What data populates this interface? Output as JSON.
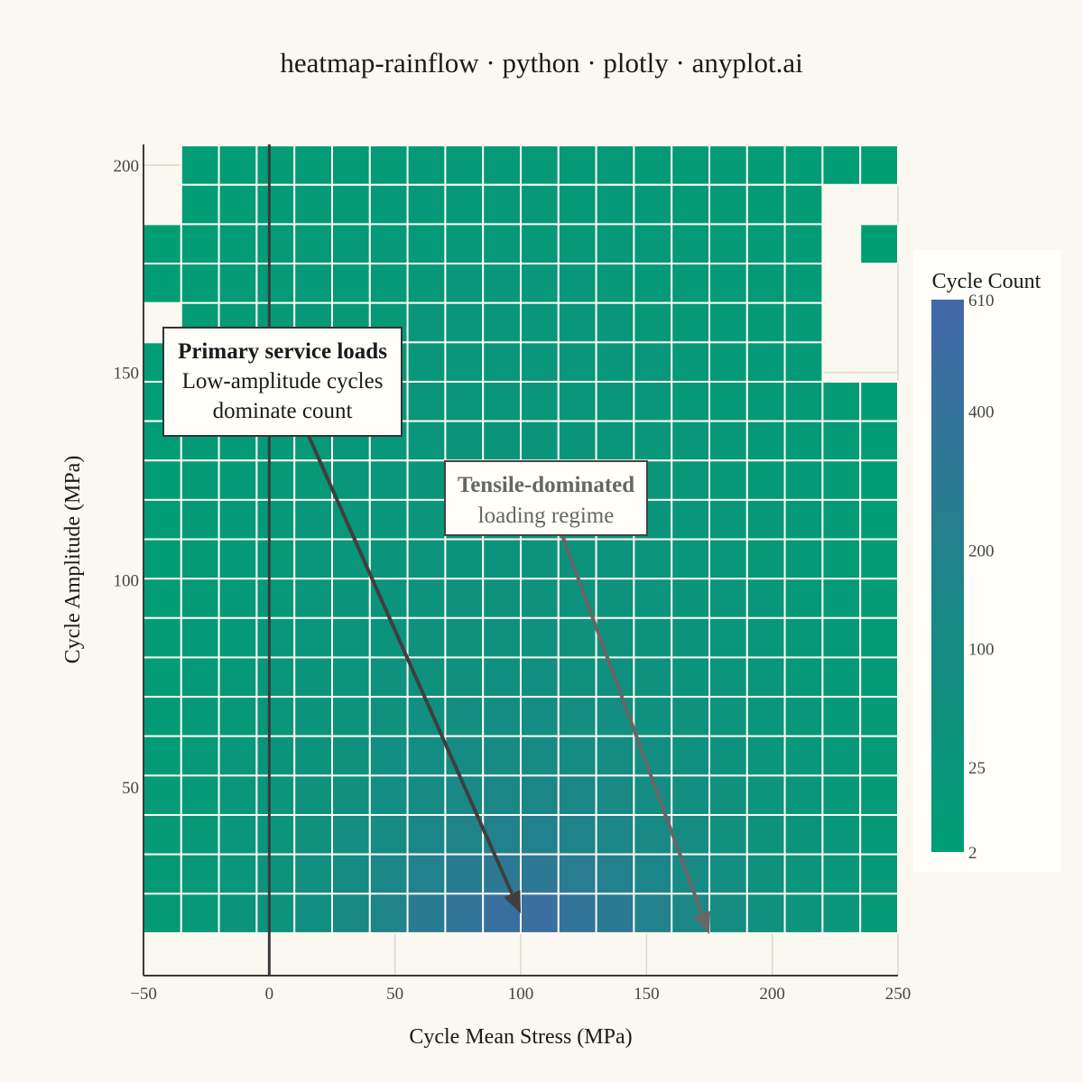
{
  "chart_data": {
    "type": "heatmap",
    "title": "heatmap-rainflow · python · plotly · anyplot.ai",
    "xlabel": "Cycle Mean Stress (MPa)",
    "ylabel": "Cycle Amplitude (MPa)",
    "xlim": [
      -50,
      250
    ],
    "ylim": [
      4.5,
      205
    ],
    "x_ticks": [
      -50,
      0,
      50,
      100,
      150,
      200,
      250
    ],
    "x_tick_labels": [
      "−50",
      "0",
      "50",
      "100",
      "150",
      "200",
      "250"
    ],
    "y_ticks": [
      50,
      100,
      150,
      200
    ],
    "y_tick_labels": [
      "50",
      "100",
      "150",
      "200"
    ],
    "zero_line_x": 0,
    "grid": true,
    "x_bins": [
      -42.5,
      -27.5,
      -12.5,
      2.5,
      17.5,
      32.5,
      47.5,
      62.5,
      77.5,
      92.5,
      107.5,
      122.5,
      137.5,
      152.5,
      167.5,
      182.5,
      197.5,
      212.5,
      227.5,
      242.5
    ],
    "y_bins": [
      200,
      190.5,
      181,
      171.5,
      162,
      152.5,
      143,
      133.5,
      124,
      114.5,
      105,
      95.5,
      86,
      76.5,
      67,
      57.5,
      48,
      38.5,
      29,
      19.5
    ],
    "z": [
      [
        null,
        4,
        5,
        6,
        7,
        9,
        10,
        12,
        13,
        14,
        14,
        13,
        12,
        10,
        9,
        8,
        6,
        5,
        3,
        2
      ],
      [
        null,
        5,
        6,
        7,
        9,
        10,
        12,
        13,
        15,
        16,
        16,
        15,
        14,
        12,
        10,
        9,
        7,
        6,
        null,
        null
      ],
      [
        2,
        5,
        7,
        8,
        10,
        12,
        14,
        15,
        17,
        18,
        18,
        17,
        16,
        14,
        12,
        10,
        8,
        6,
        null,
        2
      ],
      [
        3,
        6,
        8,
        9,
        11,
        13,
        15,
        17,
        19,
        20,
        20,
        19,
        18,
        15,
        13,
        11,
        9,
        7,
        null,
        null
      ],
      [
        null,
        6,
        8,
        10,
        12,
        14,
        17,
        19,
        21,
        22,
        22,
        21,
        19,
        17,
        15,
        12,
        10,
        8,
        null,
        null
      ],
      [
        3,
        7,
        9,
        11,
        13,
        16,
        18,
        21,
        23,
        24,
        24,
        23,
        21,
        19,
        16,
        13,
        11,
        9,
        null,
        null
      ],
      [
        4,
        7,
        10,
        12,
        15,
        17,
        20,
        23,
        25,
        27,
        27,
        25,
        23,
        21,
        18,
        15,
        12,
        9,
        7,
        4
      ],
      [
        4,
        8,
        10,
        13,
        16,
        19,
        22,
        25,
        28,
        30,
        30,
        28,
        26,
        23,
        20,
        16,
        13,
        10,
        8,
        5
      ],
      [
        4,
        8,
        11,
        14,
        17,
        21,
        24,
        28,
        31,
        33,
        33,
        31,
        29,
        25,
        22,
        18,
        14,
        11,
        9,
        5
      ],
      [
        5,
        9,
        12,
        15,
        19,
        23,
        27,
        31,
        35,
        37,
        37,
        35,
        32,
        28,
        24,
        20,
        16,
        12,
        9,
        5
      ],
      [
        5,
        9,
        13,
        17,
        21,
        25,
        30,
        35,
        39,
        42,
        42,
        40,
        36,
        32,
        27,
        22,
        17,
        13,
        10,
        6
      ],
      [
        5,
        10,
        14,
        18,
        23,
        28,
        34,
        40,
        45,
        48,
        48,
        46,
        41,
        36,
        30,
        24,
        19,
        14,
        11,
        6
      ],
      [
        6,
        11,
        15,
        20,
        26,
        32,
        39,
        46,
        52,
        56,
        56,
        53,
        48,
        41,
        34,
        27,
        21,
        16,
        12,
        7
      ],
      [
        6,
        12,
        17,
        22,
        29,
        37,
        45,
        54,
        62,
        67,
        67,
        63,
        56,
        48,
        39,
        31,
        24,
        18,
        13,
        7
      ],
      [
        7,
        13,
        18,
        25,
        33,
        43,
        54,
        66,
        76,
        83,
        83,
        77,
        68,
        57,
        46,
        36,
        27,
        20,
        14,
        8
      ],
      [
        7,
        14,
        20,
        28,
        39,
        51,
        67,
        83,
        98,
        108,
        108,
        99,
        86,
        71,
        56,
        43,
        31,
        22,
        16,
        9
      ],
      [
        8,
        15,
        22,
        32,
        45,
        62,
        84,
        108,
        131,
        147,
        147,
        133,
        113,
        90,
        69,
        51,
        37,
        25,
        17,
        10
      ],
      [
        8,
        16,
        24,
        36,
        53,
        77,
        108,
        145,
        183,
        210,
        210,
        186,
        153,
        118,
        87,
        62,
        43,
        28,
        19,
        11
      ],
      [
        9,
        17,
        26,
        40,
        62,
        95,
        140,
        199,
        262,
        310,
        310,
        266,
        210,
        155,
        109,
        75,
        50,
        32,
        21,
        12
      ],
      [
        9,
        18,
        28,
        44,
        72,
        115,
        180,
        272,
        375,
        460,
        470,
        380,
        285,
        200,
        135,
        90,
        58,
        36,
        23,
        13
      ]
    ],
    "colorscale": [
      [
        0,
        "#009E73"
      ],
      [
        0.5,
        "#1E8489"
      ],
      [
        1,
        "#4467A8"
      ]
    ],
    "colorbar": {
      "title": "Cycle Count",
      "ticks": [
        2,
        25,
        100,
        200,
        400,
        610
      ],
      "tick_labels": [
        "2",
        "25",
        "100",
        "200",
        "400",
        "610"
      ],
      "scale": "sqrt",
      "min": 2,
      "max": 610
    },
    "annotations": [
      {
        "title": "Primary service loads",
        "lines": [
          "Low-amplitude cycles",
          "dominate count"
        ],
        "point_x": 100,
        "point_y": 19.5,
        "style": "dark"
      },
      {
        "title": "Tensile-dominated",
        "lines": [
          "loading regime"
        ],
        "point_x": 175,
        "point_y": 14.5,
        "style": "gray"
      }
    ]
  }
}
